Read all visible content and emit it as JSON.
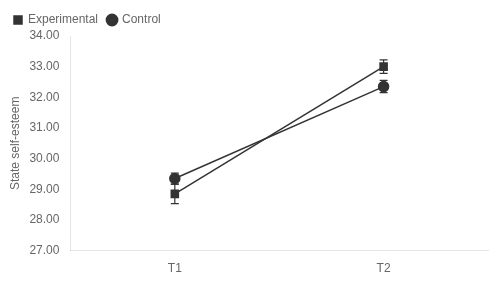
{
  "chart_data": {
    "type": "line",
    "categories": [
      "T1",
      "T2"
    ],
    "series": [
      {
        "name": "Experimental",
        "color": "#333333",
        "marker": "square",
        "line_style": "solid",
        "values": [
          28.85,
          33.0
        ],
        "errors": [
          0.32,
          0.22
        ]
      },
      {
        "name": "Control",
        "color": "#333333",
        "marker": "circle",
        "line_style": "solid",
        "values": [
          29.35,
          32.35
        ],
        "errors": [
          0.18,
          0.2
        ]
      }
    ],
    "ylabel": "State self-esteem",
    "ylim": [
      27.0,
      34.0
    ],
    "yticks": [
      {
        "value": 27.0,
        "label": "27.00"
      },
      {
        "value": 28.0,
        "label": "28.00"
      },
      {
        "value": 29.0,
        "label": "29.00"
      },
      {
        "value": 30.0,
        "label": "30.00"
      },
      {
        "value": 31.0,
        "label": "31.00"
      },
      {
        "value": 32.0,
        "label": "32.00"
      },
      {
        "value": 33.0,
        "label": "33.00"
      },
      {
        "value": 34.0,
        "label": "34.00"
      }
    ],
    "grid": false,
    "legend": "upper left"
  }
}
